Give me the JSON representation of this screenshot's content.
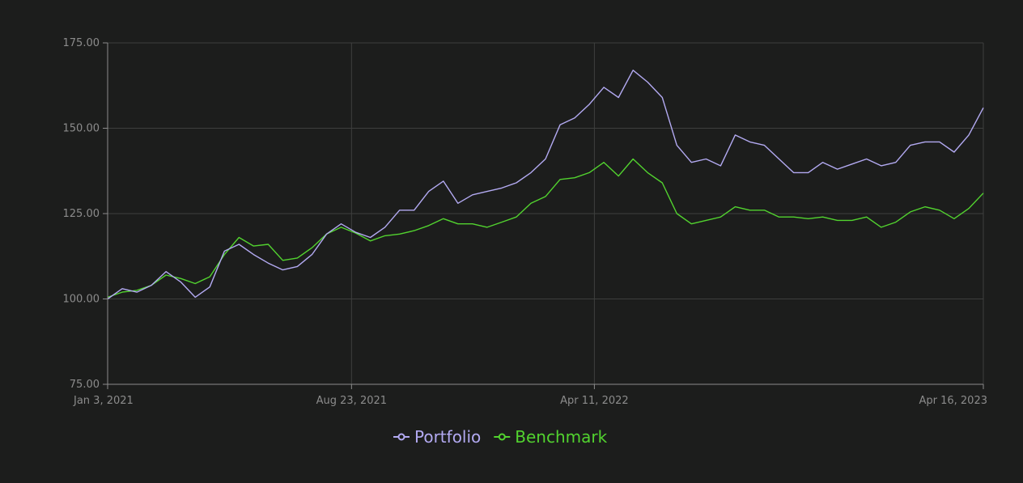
{
  "chart_data": {
    "type": "line",
    "title": "",
    "xlabel": "",
    "ylabel": "",
    "ylim": [
      75,
      175
    ],
    "y_ticks": [
      "75.00",
      "100.00",
      "125.00",
      "150.00",
      "175.00"
    ],
    "x_ticks": [
      {
        "label": "Jan 3, 2021",
        "date": "2021-01-03"
      },
      {
        "label": "Aug 23, 2021",
        "date": "2021-08-23"
      },
      {
        "label": "Apr 11, 2022",
        "date": "2022-04-11"
      },
      {
        "label": "Apr 16, 2023",
        "date": "2023-04-16"
      }
    ],
    "x_start": "2021-01-03",
    "x_end": "2023-04-16",
    "grid": true,
    "legend_position": "bottom-center",
    "series": [
      {
        "name": "Portfolio",
        "color": "#b3aaf2",
        "values": [
          100,
          103,
          102,
          104,
          108,
          105,
          100.5,
          103.5,
          114,
          116,
          113,
          110.5,
          108.5,
          109.5,
          113,
          119,
          122,
          119.5,
          118,
          121,
          126,
          126,
          131.5,
          134.5,
          128,
          130.5,
          131.5,
          132.5,
          134,
          137,
          141,
          151,
          153,
          157,
          162,
          159,
          167,
          163.5,
          159,
          145,
          140,
          141,
          139,
          148,
          146,
          145,
          141,
          137,
          137,
          140,
          138,
          139.5,
          141,
          139,
          140,
          145,
          146,
          146,
          143,
          148,
          156
        ]
      },
      {
        "name": "Benchmark",
        "color": "#52d32f",
        "values": [
          100.5,
          102,
          102.5,
          104,
          107,
          106,
          104.5,
          106.5,
          113,
          118,
          115.5,
          116,
          111.3,
          112,
          115,
          119,
          121,
          119.3,
          117,
          118.5,
          119,
          120,
          121.5,
          123.5,
          122,
          122,
          121,
          122.5,
          124,
          128,
          130,
          135,
          135.5,
          137,
          140,
          136,
          141,
          137,
          134,
          125,
          122,
          123,
          124,
          127,
          126,
          126,
          124,
          124,
          123.5,
          124,
          123,
          123,
          124,
          121,
          122.5,
          125.5,
          127,
          126,
          123.5,
          126.5,
          131
        ]
      }
    ]
  }
}
